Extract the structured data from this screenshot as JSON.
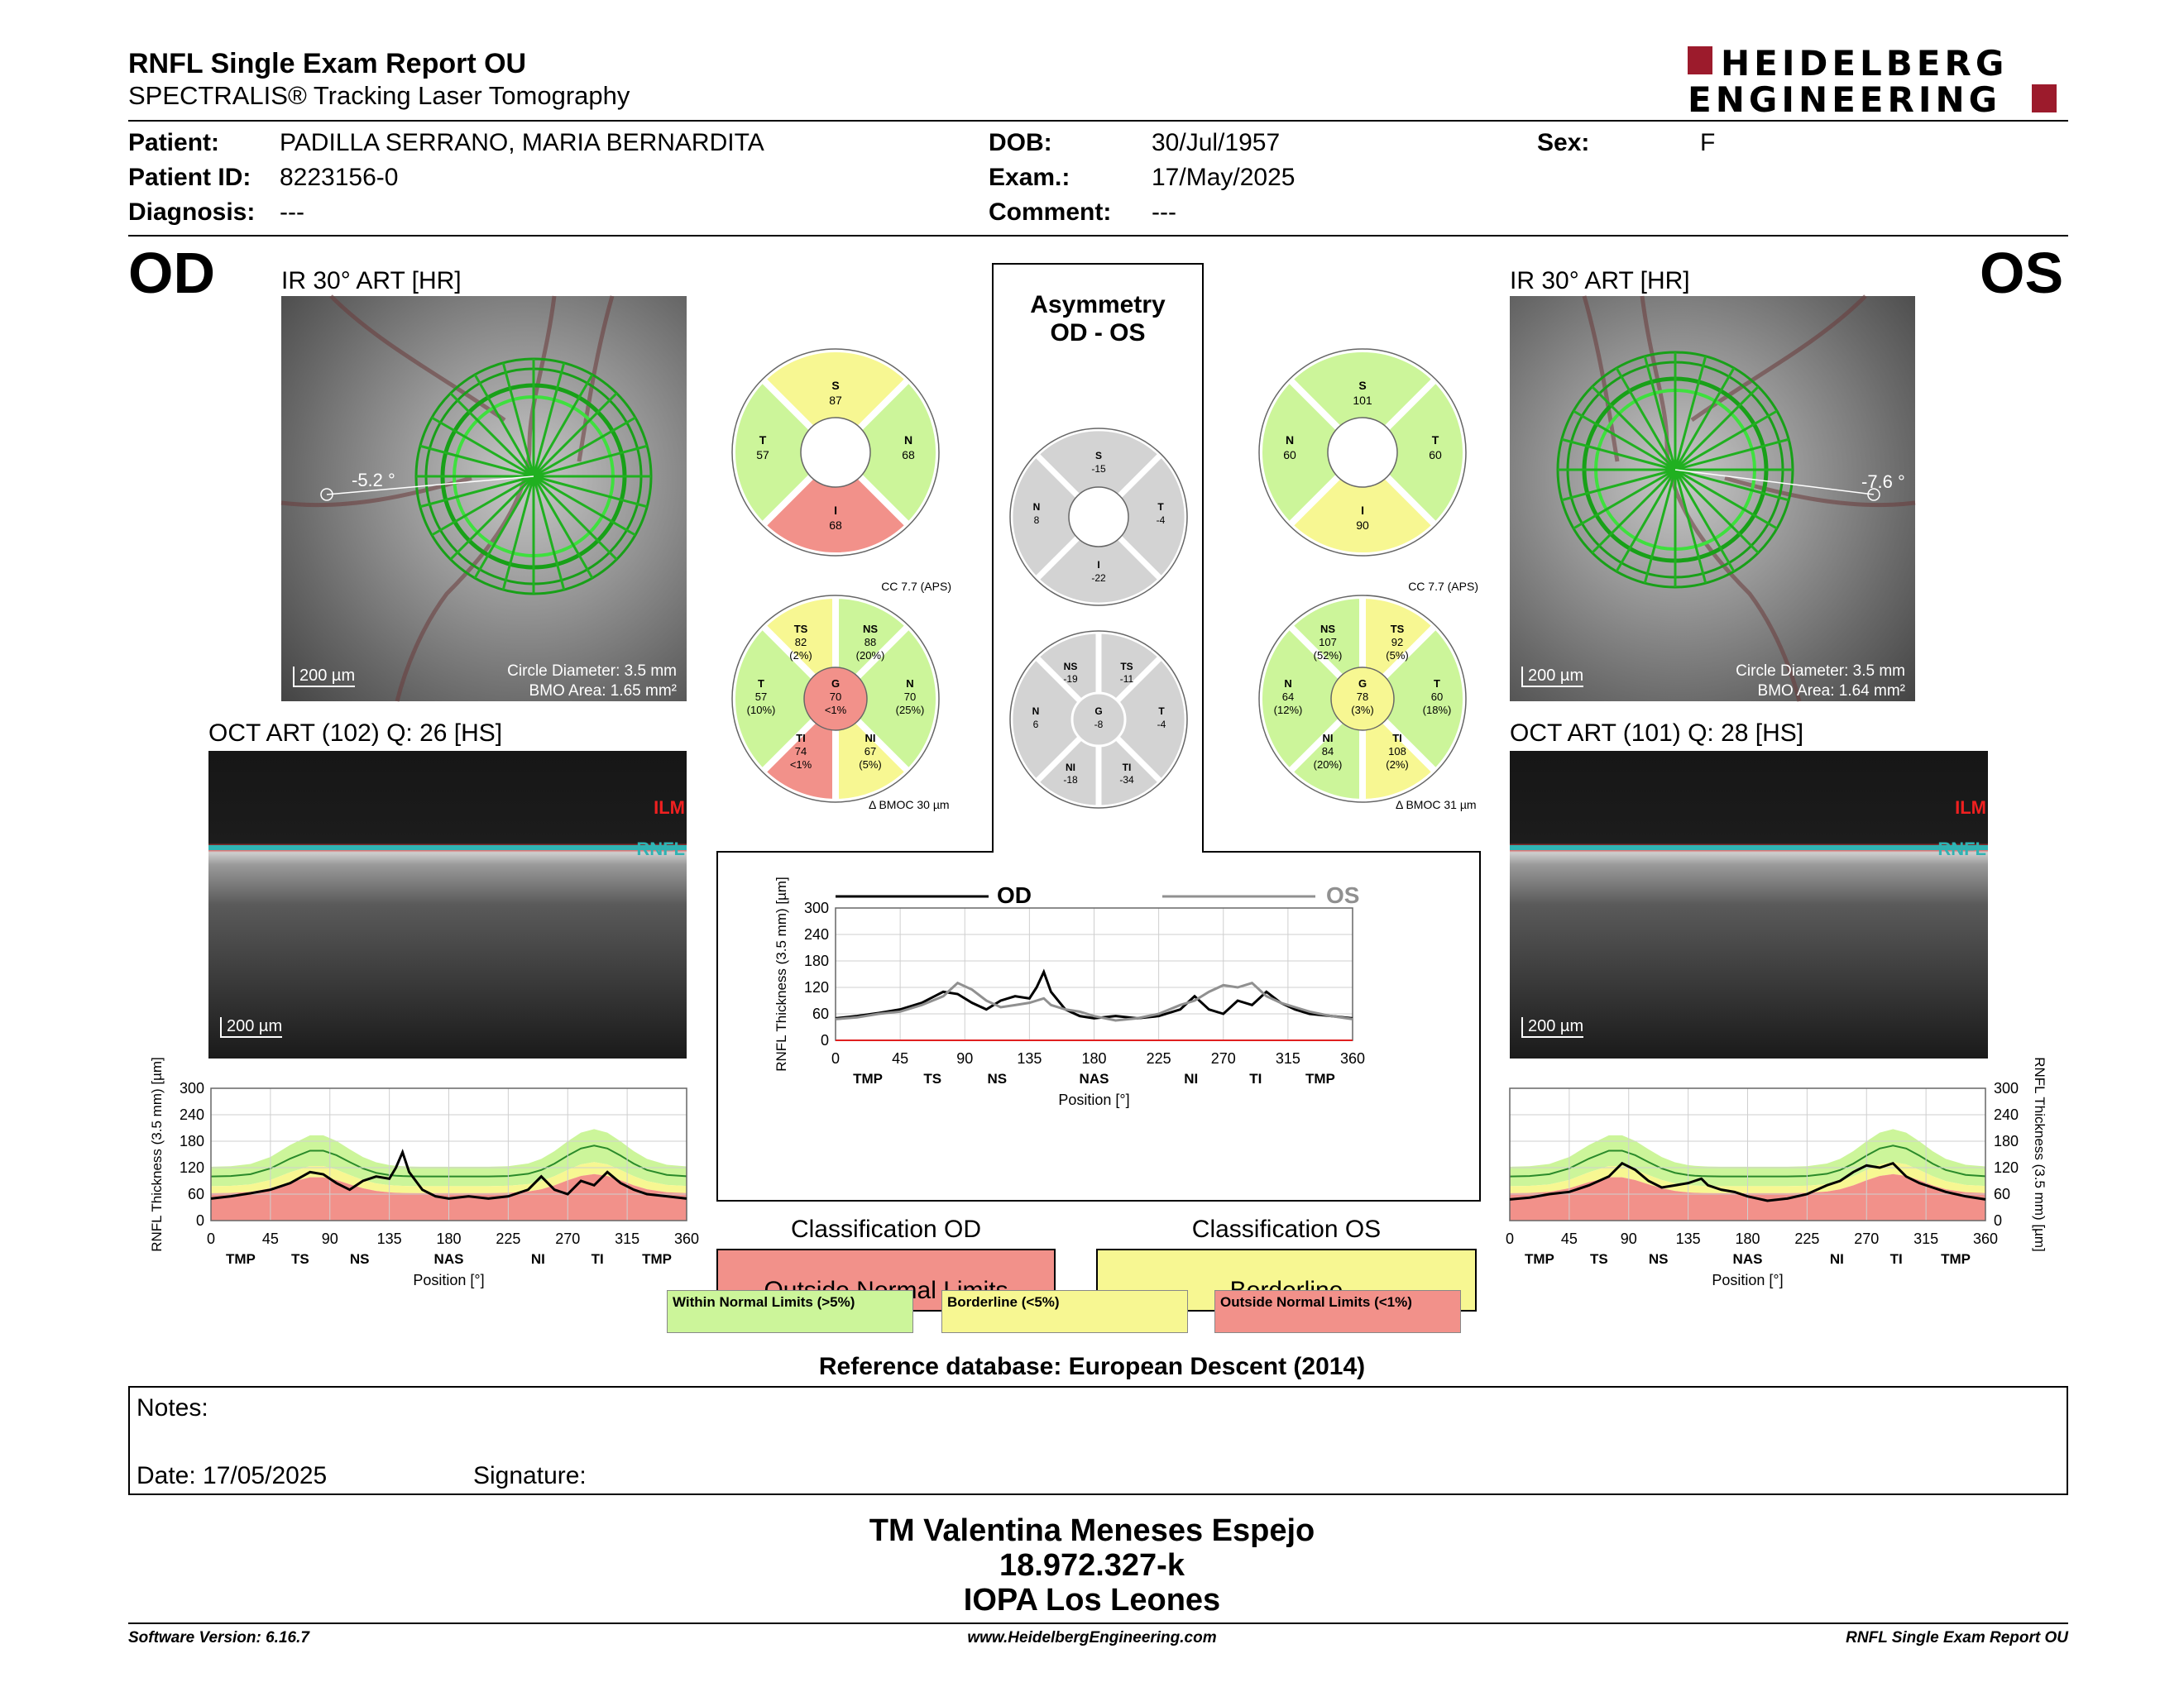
{
  "header": {
    "title": "RNFL Single Exam Report OU",
    "subtitle": "SPECTRALIS® Tracking Laser Tomography",
    "logo_line1": "HEIDELBERG",
    "logo_line2": "ENGINEERING"
  },
  "patient": {
    "patient_label": "Patient:",
    "patient_value": "PADILLA SERRANO, MARIA BERNARDITA",
    "id_label": "Patient ID:",
    "id_value": "8223156-0",
    "diagnosis_label": "Diagnosis:",
    "diagnosis_value": "---",
    "dob_label": "DOB:",
    "dob_value": "30/Jul/1957",
    "exam_label": "Exam.:",
    "exam_value": "17/May/2025",
    "comment_label": "Comment:",
    "comment_value": "---",
    "sex_label": "Sex:",
    "sex_value": "F"
  },
  "od": {
    "eye": "OD",
    "ir_title": "IR 30° ART [HR]",
    "angle": "-5.2 °",
    "scale": "200 µm",
    "circle_diameter": "Circle Diameter: 3.5 mm",
    "bmo_area": "BMO Area: 1.65 mm²",
    "oct_title": "OCT ART (102) Q: 26 [HS]",
    "oct_scale": "200 µm",
    "ilm": "ILM",
    "rnfl": "RNFL",
    "classification_title": "Classification OD",
    "classification": "Outside Normal Limits",
    "cc": "CC 7.7 (APS)",
    "bmoc": "BMOC 30 µm",
    "quad": {
      "S": "87",
      "N": "68",
      "I": "68",
      "T": "57"
    },
    "sectors": {
      "TS": [
        "82",
        "(2%)"
      ],
      "NS": [
        "88",
        "(20%)"
      ],
      "N": [
        "70",
        "(25%)"
      ],
      "NI": [
        "67",
        "(5%)"
      ],
      "TI": [
        "74",
        "<1%"
      ],
      "T": [
        "57",
        "(10%)"
      ],
      "G": [
        "70",
        "<1%"
      ]
    }
  },
  "os": {
    "eye": "OS",
    "ir_title": "IR 30° ART [HR]",
    "angle": "-7.6 °",
    "scale": "200 µm",
    "circle_diameter": "Circle Diameter: 3.5 mm",
    "bmo_area": "BMO Area: 1.64 mm²",
    "oct_title": "OCT ART (101) Q: 28 [HS]",
    "oct_scale": "200 µm",
    "ilm": "ILM",
    "rnfl": "RNFL",
    "classification_title": "Classification OS",
    "classification": "Borderline",
    "cc": "CC 7.7 (APS)",
    "bmoc": "BMOC 31 µm",
    "quad": {
      "S": "101",
      "N": "60",
      "I": "90",
      "T": "60"
    },
    "sectors": {
      "NS": [
        "107",
        "(52%)"
      ],
      "TS": [
        "92",
        "(5%)"
      ],
      "T": [
        "60",
        "(18%)"
      ],
      "TI": [
        "108",
        "(2%)"
      ],
      "NI": [
        "84",
        "(20%)"
      ],
      "N": [
        "64",
        "(12%)"
      ],
      "G": [
        "78",
        "(3%)"
      ]
    }
  },
  "asymmetry": {
    "title1": "Asymmetry",
    "title2": "OD - OS",
    "quad": {
      "S": "-15",
      "N": "8",
      "I": "-22",
      "T": "-4"
    },
    "sectors": {
      "NS": "-19",
      "TS": "-11",
      "N": "6",
      "G": "-8",
      "T": "-4",
      "NI": "-18",
      "TI": "-34"
    },
    "legend_od": "OD",
    "legend_os": "OS"
  },
  "legend": {
    "wnl": "Within Normal Limits (>5%)",
    "bl": "Borderline (<5%)",
    "onl": "Outside Normal Limits (<1%)"
  },
  "reference": "Reference database: European Descent (2014)",
  "notes": {
    "notes_label": "Notes:",
    "date_label": "Date: 17/05/2025",
    "signature_label": "Signature:"
  },
  "signature": {
    "line1": "TM Valentina Meneses Espejo",
    "line2": "18.972.327-k",
    "line3": "IOPA Los Leones"
  },
  "footer": {
    "left": "Software Version: 6.16.7",
    "center": "www.HeidelbergEngineering.com",
    "right": "RNFL Single Exam Report OU"
  },
  "colors": {
    "normal": "#ccf59a",
    "borderline": "#f7f792",
    "outside": "#f2918a",
    "gray": "#d3d3d3",
    "brand": "#9c1b2c"
  },
  "chart_data": [
    {
      "type": "line",
      "name": "RNFL thickness OD",
      "xlabel": "Position [°]",
      "ylabel": "RNFL Thickness (3.5 mm) [µm]",
      "xlim": [
        0,
        360
      ],
      "ylim": [
        0,
        300
      ],
      "xticks": [
        0,
        45,
        90,
        135,
        180,
        225,
        270,
        315,
        360
      ],
      "yticks": [
        0,
        60,
        120,
        180,
        240,
        300
      ],
      "sector_labels": [
        "TMP",
        "TS",
        "NS",
        "NAS",
        "NI",
        "TI",
        "TMP"
      ],
      "x": [
        0,
        15,
        30,
        45,
        60,
        75,
        85,
        95,
        105,
        115,
        125,
        135,
        140,
        145,
        150,
        160,
        170,
        180,
        195,
        210,
        225,
        240,
        250,
        260,
        270,
        280,
        290,
        300,
        310,
        320,
        330,
        345,
        360
      ],
      "series": [
        {
          "values": [
            50,
            55,
            62,
            70,
            85,
            110,
            105,
            85,
            70,
            90,
            100,
            95,
            120,
            155,
            110,
            70,
            55,
            50,
            55,
            50,
            55,
            70,
            100,
            70,
            60,
            90,
            80,
            110,
            85,
            70,
            60,
            55,
            50
          ]
        }
      ]
    },
    {
      "type": "line",
      "name": "Asymmetry OD vs OS",
      "xlabel": "Position [°]",
      "ylabel": "RNFL Thickness (3.5 mm) [µm]",
      "xlim": [
        0,
        360
      ],
      "ylim": [
        0,
        300
      ],
      "xticks": [
        0,
        45,
        90,
        135,
        180,
        225,
        270,
        315,
        360
      ],
      "yticks": [
        0,
        60,
        120,
        180,
        240,
        300
      ],
      "sector_labels": [
        "TMP",
        "TS",
        "NS",
        "NAS",
        "NI",
        "TI",
        "TMP"
      ],
      "x": [
        0,
        15,
        30,
        45,
        60,
        75,
        85,
        95,
        105,
        115,
        125,
        135,
        140,
        145,
        150,
        160,
        170,
        180,
        195,
        210,
        225,
        240,
        250,
        260,
        270,
        280,
        290,
        300,
        310,
        320,
        330,
        345,
        360
      ],
      "series": [
        {
          "name": "OD",
          "values": [
            50,
            55,
            62,
            70,
            85,
            110,
            105,
            85,
            70,
            90,
            100,
            95,
            120,
            155,
            110,
            70,
            55,
            50,
            55,
            50,
            55,
            70,
            100,
            70,
            60,
            90,
            80,
            110,
            85,
            70,
            60,
            55,
            50
          ]
        },
        {
          "name": "OS",
          "values": [
            48,
            52,
            60,
            65,
            80,
            100,
            130,
            115,
            90,
            75,
            80,
            85,
            90,
            95,
            80,
            70,
            65,
            55,
            45,
            50,
            60,
            80,
            90,
            110,
            125,
            120,
            130,
            100,
            85,
            75,
            65,
            55,
            48
          ]
        }
      ]
    },
    {
      "type": "line",
      "name": "RNFL thickness OS",
      "xlabel": "Position [°]",
      "ylabel": "RNFL Thickness (3.5 mm) [µm]",
      "xlim": [
        0,
        360
      ],
      "ylim": [
        0,
        300
      ],
      "xticks": [
        0,
        45,
        90,
        135,
        180,
        225,
        270,
        315,
        360
      ],
      "yticks": [
        0,
        60,
        120,
        180,
        240,
        300
      ],
      "sector_labels": [
        "TMP",
        "TS",
        "NS",
        "NAS",
        "NI",
        "TI",
        "TMP"
      ],
      "x": [
        0,
        15,
        30,
        45,
        60,
        75,
        85,
        95,
        105,
        115,
        125,
        135,
        140,
        145,
        150,
        160,
        170,
        180,
        195,
        210,
        225,
        240,
        250,
        260,
        270,
        280,
        290,
        300,
        310,
        320,
        330,
        345,
        360
      ],
      "series": [
        {
          "values": [
            48,
            52,
            60,
            65,
            80,
            100,
            130,
            115,
            90,
            75,
            80,
            85,
            90,
            95,
            80,
            70,
            65,
            55,
            45,
            50,
            60,
            80,
            90,
            110,
            125,
            120,
            130,
            100,
            85,
            75,
            65,
            55,
            48
          ]
        }
      ]
    }
  ]
}
